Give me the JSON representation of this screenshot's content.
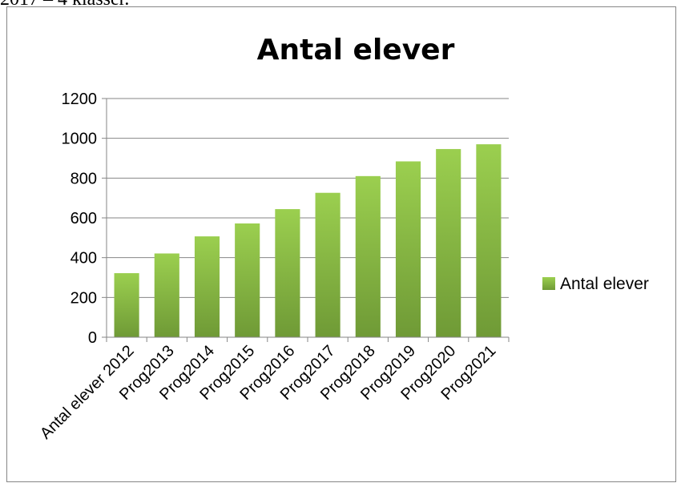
{
  "top_text": "2017 – 4 klasser.",
  "colors": {
    "bar_light": "#9bcf4f",
    "bar_dark": "#6f9a36",
    "grid": "#868686",
    "axis": "#868686",
    "frame": "#868686"
  },
  "chart_data": {
    "type": "bar",
    "title": "Antal elever",
    "xlabel": "",
    "ylabel": "",
    "categories": [
      "Antal elever 2012",
      "Prog2013",
      "Prog2014",
      "Prog2015",
      "Prog2016",
      "Prog2017",
      "Prog2018",
      "Prog2019",
      "Prog2020",
      "Prog2021"
    ],
    "series": [
      {
        "name": "Antal elever",
        "values": [
          322,
          421,
          507,
          572,
          644,
          726,
          810,
          884,
          946,
          970
        ]
      }
    ],
    "ylim": [
      0,
      1200
    ],
    "yticks": [
      0,
      200,
      400,
      600,
      800,
      1000,
      1200
    ],
    "grid": true,
    "legend": "right"
  }
}
